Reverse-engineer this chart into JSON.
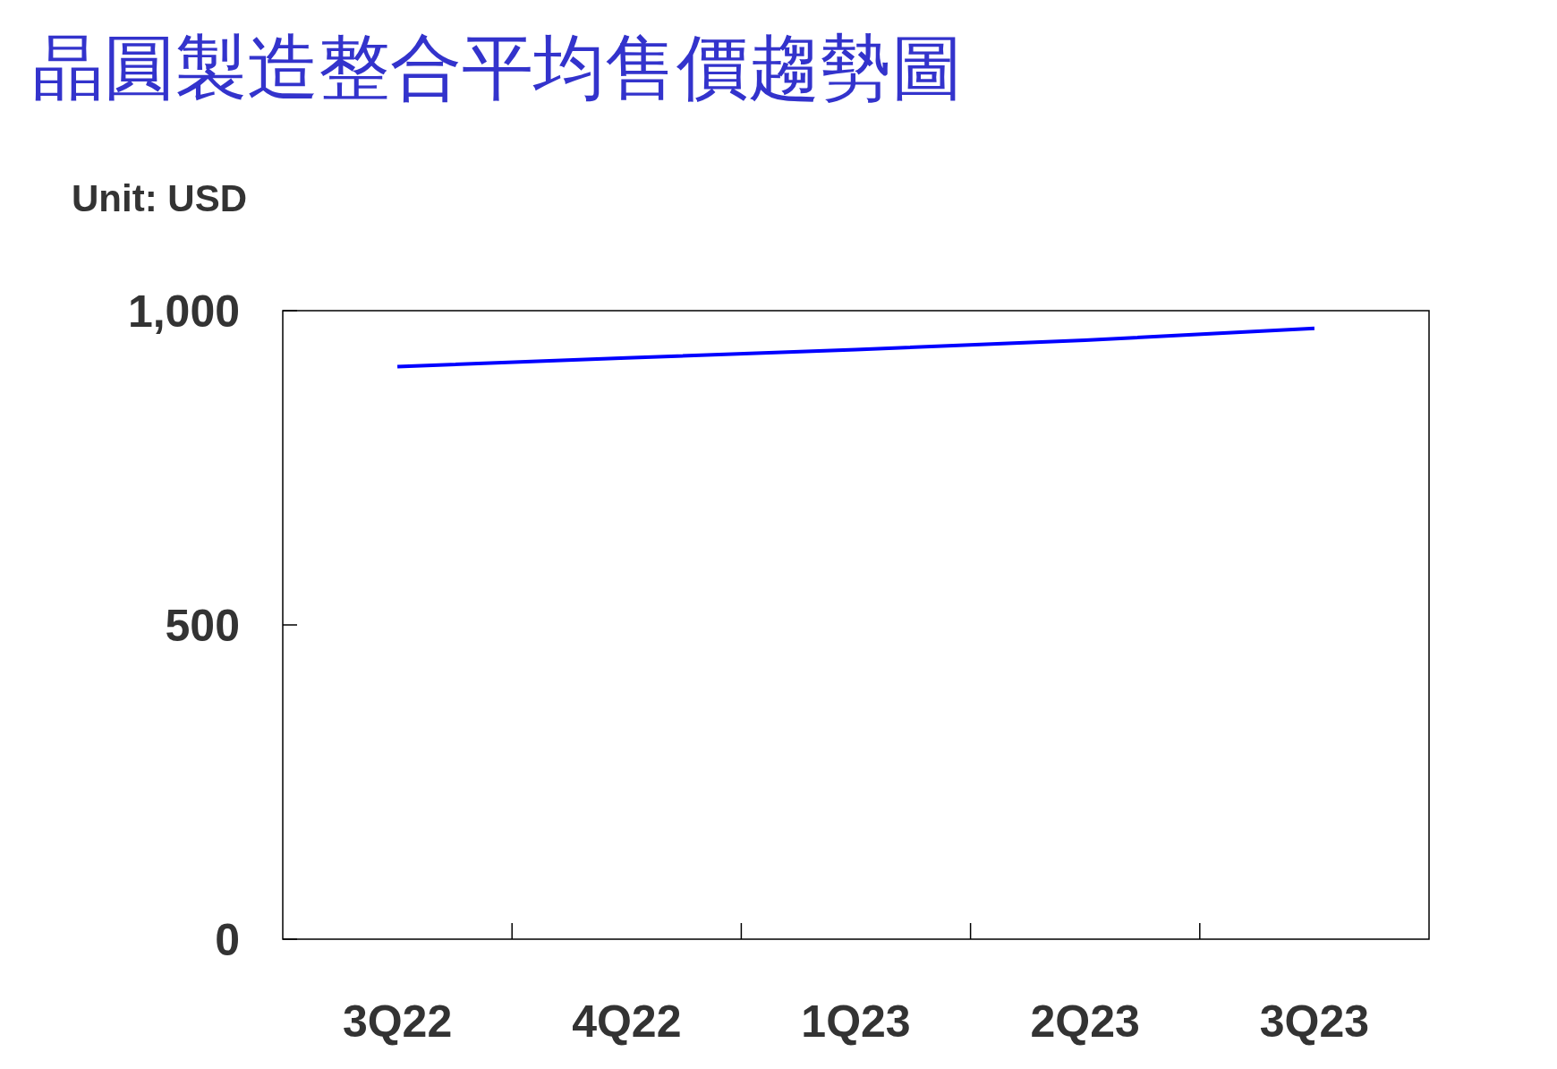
{
  "chart_data": {
    "type": "line",
    "title": "晶圓製造整合平均售價趨勢圖",
    "ylabel": "Unit: USD",
    "categories": [
      "3Q22",
      "4Q22",
      "1Q23",
      "2Q23",
      "3Q23"
    ],
    "series": [
      {
        "color": "#0000ff",
        "values": [
          911,
          925,
          938,
          953,
          972
        ]
      }
    ],
    "ylim": [
      0,
      1000
    ],
    "yticks": [
      0,
      500,
      {
        "value": 1000,
        "label": "1,000"
      }
    ],
    "grid": false,
    "marker": "none",
    "line_style": "solid"
  }
}
